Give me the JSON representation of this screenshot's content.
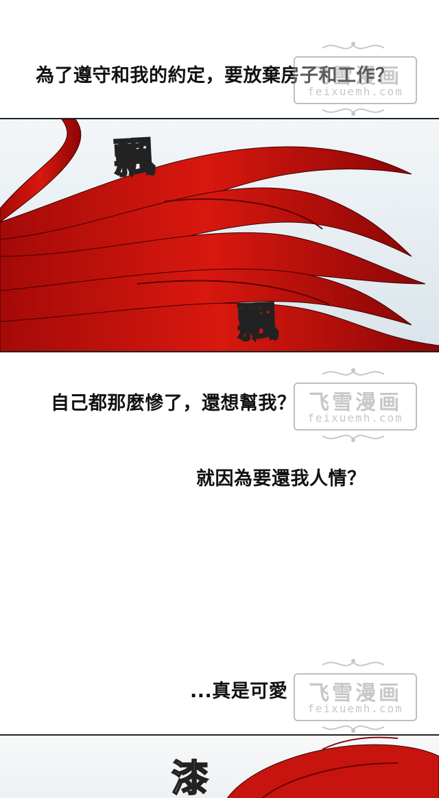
{
  "dialogue": {
    "line1": "為了遵守和我的約定，要放棄房子和工作？",
    "line2": "自己都那麼慘了，還想幫我？",
    "line3": "就因為要還我人情？",
    "line4": "...真是可愛"
  },
  "sfx": {
    "flutter1": "飄",
    "flutter2": "飄",
    "panel2_sfx": "漆"
  },
  "watermark": {
    "title": "飞雪漫画",
    "site": "feixuemh.com"
  },
  "colors": {
    "hair_red": "#c8140e",
    "hair_dark": "#7a0606",
    "sky": "#e4ecf1"
  }
}
